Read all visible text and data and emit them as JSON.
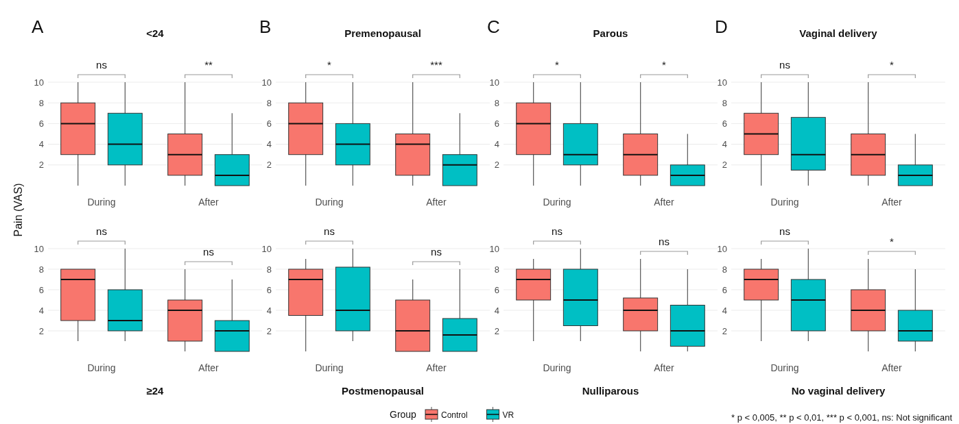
{
  "chart_data": [
    {
      "type": "box",
      "title": "<24",
      "ylabel": "Pain (VAS)",
      "legend_title": "Group",
      "legend": "bottom",
      "categories": [
        "During",
        "After"
      ],
      "ylim": [
        0,
        10
      ],
      "yticks": [
        2,
        4,
        6,
        8,
        10
      ],
      "grid": "y",
      "annotations": [
        "A",
        "ns",
        "**"
      ],
      "series": [
        {
          "name": "Control",
          "color": "#f8766d",
          "boxes": [
            {
              "low": 0,
              "q1": 3,
              "median": 6,
              "q3": 8,
              "high": 10
            },
            {
              "low": 0,
              "q1": 1,
              "median": 3,
              "q3": 5,
              "high": 10
            }
          ]
        },
        {
          "name": "VR",
          "color": "#00bfc4",
          "boxes": [
            {
              "low": 0,
              "q1": 2,
              "median": 4,
              "q3": 7,
              "high": 10
            },
            {
              "low": 0,
              "q1": 0,
              "median": 1,
              "q3": 3,
              "high": 7
            }
          ]
        }
      ]
    },
    {
      "type": "box",
      "title": "Premenopausal",
      "categories": [
        "During",
        "After"
      ],
      "ylim": [
        0,
        10
      ],
      "yticks": [
        2,
        4,
        6,
        8,
        10
      ],
      "grid": "y",
      "annotations": [
        "B",
        "*",
        "***"
      ],
      "series": [
        {
          "color": "#f8766d",
          "boxes": [
            {
              "low": 0,
              "q1": 3,
              "median": 6,
              "q3": 8,
              "high": 10
            },
            {
              "low": 0,
              "q1": 1,
              "median": 4,
              "q3": 5,
              "high": 10
            }
          ]
        },
        {
          "color": "#00bfc4",
          "boxes": [
            {
              "low": 0,
              "q1": 2,
              "median": 4,
              "q3": 6,
              "high": 10
            },
            {
              "low": 0,
              "q1": 0,
              "median": 2,
              "q3": 3,
              "high": 7
            }
          ]
        }
      ]
    },
    {
      "type": "box",
      "title": "Parous",
      "categories": [
        "During",
        "After"
      ],
      "ylim": [
        0,
        10
      ],
      "yticks": [
        2,
        4,
        6,
        8,
        10
      ],
      "grid": "y",
      "annotations": [
        "C",
        "*",
        "*"
      ],
      "series": [
        {
          "color": "#f8766d",
          "boxes": [
            {
              "low": 0,
              "q1": 3,
              "median": 6,
              "q3": 8,
              "high": 10
            },
            {
              "low": 0,
              "q1": 1,
              "median": 3,
              "q3": 5,
              "high": 10
            }
          ]
        },
        {
          "color": "#00bfc4",
          "boxes": [
            {
              "low": 0,
              "q1": 2,
              "median": 3,
              "q3": 6,
              "high": 10
            },
            {
              "low": 0,
              "q1": 0,
              "median": 1,
              "q3": 2,
              "high": 5
            }
          ]
        }
      ]
    },
    {
      "type": "box",
      "title": "Vaginal delivery",
      "categories": [
        "During",
        "After"
      ],
      "ylim": [
        0,
        10
      ],
      "yticks": [
        2,
        4,
        6,
        8,
        10
      ],
      "grid": "y",
      "annotations": [
        "D",
        "ns",
        "*"
      ],
      "series": [
        {
          "color": "#f8766d",
          "boxes": [
            {
              "low": 0,
              "q1": 3,
              "median": 5,
              "q3": 7,
              "high": 10
            },
            {
              "low": 0,
              "q1": 1,
              "median": 3,
              "q3": 5,
              "high": 10
            }
          ]
        },
        {
          "color": "#00bfc4",
          "boxes": [
            {
              "low": 0,
              "q1": 1.5,
              "median": 3,
              "q3": 6.6,
              "high": 10
            },
            {
              "low": 0,
              "q1": 0,
              "median": 1,
              "q3": 2,
              "high": 5
            }
          ]
        }
      ]
    },
    {
      "type": "box",
      "title": "≥24",
      "categories": [
        "During",
        "After"
      ],
      "ylim": [
        0,
        10
      ],
      "yticks": [
        2,
        4,
        6,
        8,
        10
      ],
      "grid": "y",
      "annotations": [
        "ns",
        "ns"
      ],
      "series": [
        {
          "color": "#f8766d",
          "boxes": [
            {
              "low": 1,
              "q1": 3,
              "median": 7,
              "q3": 8,
              "high": 8
            },
            {
              "low": 0,
              "q1": 1,
              "median": 4,
              "q3": 5,
              "high": 8
            }
          ]
        },
        {
          "color": "#00bfc4",
          "boxes": [
            {
              "low": 1,
              "q1": 2,
              "median": 3,
              "q3": 6,
              "high": 10
            },
            {
              "low": 0,
              "q1": 0,
              "median": 2,
              "q3": 3,
              "high": 7
            }
          ]
        }
      ]
    },
    {
      "type": "box",
      "title": "Postmenopausal",
      "categories": [
        "During",
        "After"
      ],
      "ylim": [
        0,
        10
      ],
      "yticks": [
        2,
        4,
        6,
        8,
        10
      ],
      "grid": "y",
      "annotations": [
        "ns",
        "ns"
      ],
      "series": [
        {
          "color": "#f8766d",
          "boxes": [
            {
              "low": 0,
              "q1": 3.5,
              "median": 7,
              "q3": 8,
              "high": 9
            },
            {
              "low": 0,
              "q1": 0,
              "median": 2,
              "q3": 5,
              "high": 7
            }
          ]
        },
        {
          "color": "#00bfc4",
          "boxes": [
            {
              "low": 1,
              "q1": 2,
              "median": 4,
              "q3": 8.2,
              "high": 10
            },
            {
              "low": 0,
              "q1": 0,
              "median": 1.6,
              "q3": 3.2,
              "high": 8
            }
          ]
        }
      ]
    },
    {
      "type": "box",
      "title": "Nulliparous",
      "categories": [
        "During",
        "After"
      ],
      "ylim": [
        0,
        10
      ],
      "yticks": [
        2,
        4,
        6,
        8,
        10
      ],
      "grid": "y",
      "annotations": [
        "ns",
        "ns"
      ],
      "series": [
        {
          "color": "#f8766d",
          "boxes": [
            {
              "low": 1,
              "q1": 5,
              "median": 7,
              "q3": 8,
              "high": 9
            },
            {
              "low": 0,
              "q1": 2,
              "median": 4,
              "q3": 5.2,
              "high": 9
            }
          ]
        },
        {
          "color": "#00bfc4",
          "boxes": [
            {
              "low": 1,
              "q1": 2.5,
              "median": 5,
              "q3": 8,
              "high": 10
            },
            {
              "low": 0,
              "q1": 0.5,
              "median": 2,
              "q3": 4.5,
              "high": 8
            }
          ]
        }
      ]
    },
    {
      "type": "box",
      "title": "No vaginal delivery",
      "categories": [
        "During",
        "After"
      ],
      "ylim": [
        0,
        10
      ],
      "yticks": [
        2,
        4,
        6,
        8,
        10
      ],
      "grid": "y",
      "annotations": [
        "ns",
        "*",
        "* p < 0,005, ** p < 0,01, *** p < 0,001, ns: Not significant"
      ],
      "series": [
        {
          "color": "#f8766d",
          "boxes": [
            {
              "low": 1,
              "q1": 5,
              "median": 7,
              "q3": 8,
              "high": 9
            },
            {
              "low": 0,
              "q1": 2,
              "median": 4,
              "q3": 6,
              "high": 9
            }
          ]
        },
        {
          "color": "#00bfc4",
          "boxes": [
            {
              "low": 1,
              "q1": 2,
              "median": 5,
              "q3": 7,
              "high": 10
            },
            {
              "low": 0,
              "q1": 1,
              "median": 2,
              "q3": 4,
              "high": 8
            }
          ]
        }
      ]
    }
  ]
}
